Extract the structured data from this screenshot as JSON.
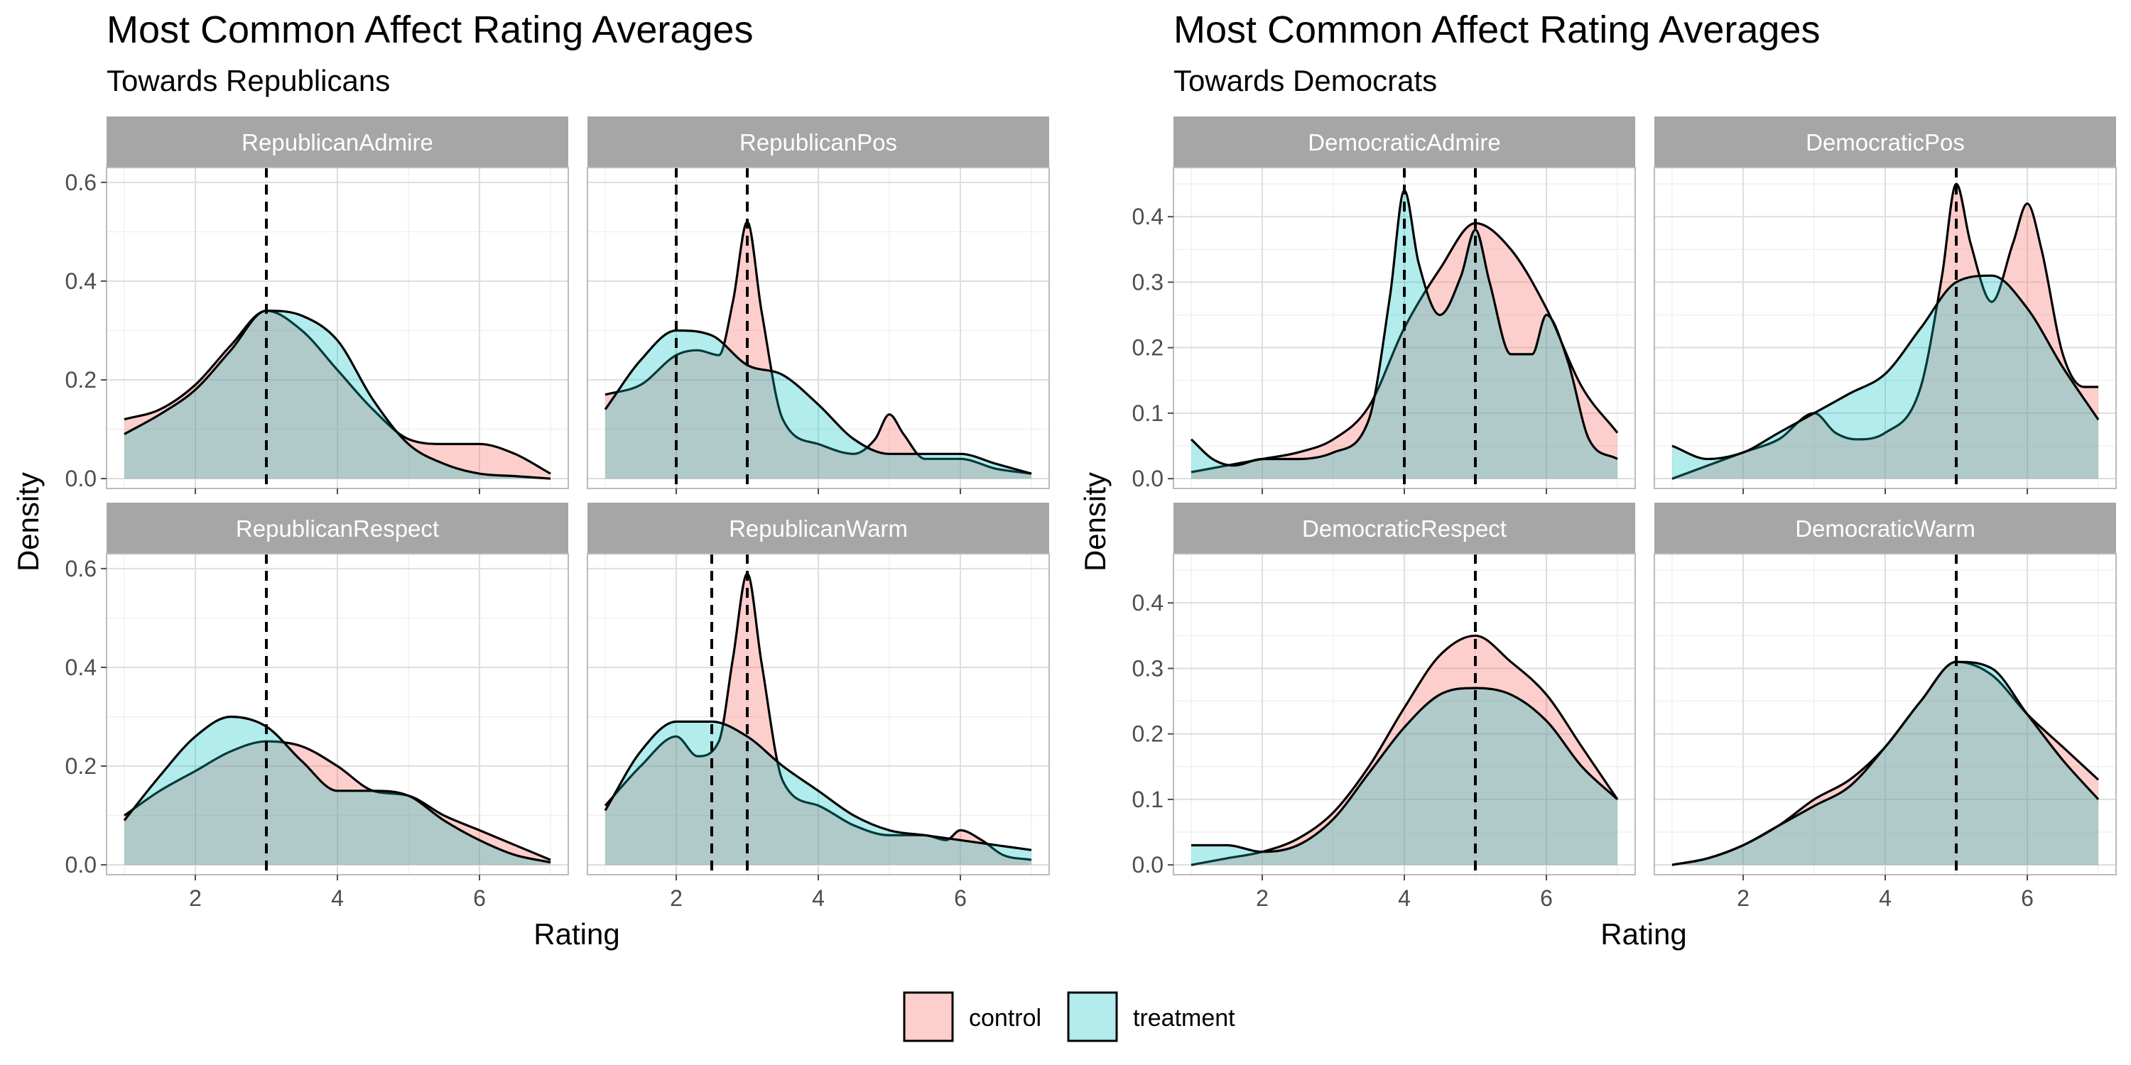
{
  "chart_data": {
    "type": "area",
    "x_label": "Rating",
    "y_label": "Density",
    "legend": {
      "position": "bottom",
      "entries": [
        {
          "name": "control",
          "color": "#F8766D"
        },
        {
          "name": "treatment",
          "color": "#00BFC4"
        }
      ]
    },
    "grid": true,
    "figures": [
      {
        "title": "Most Common Affect Rating Averages",
        "subtitle": "Towards Republicans",
        "xlim": [
          0.75,
          7.25
        ],
        "x_ticks": [
          2,
          4,
          6
        ],
        "ylim": [
          -0.02,
          0.63
        ],
        "y_ticks": [
          0.0,
          0.2,
          0.4,
          0.6
        ],
        "y_tick_labels": [
          "0.0",
          "0.2",
          "0.4",
          "0.6"
        ],
        "panels": [
          {
            "name": "RepublicanAdmire",
            "vlines": [
              3
            ],
            "series": [
              {
                "name": "control",
                "x": [
                  1,
                  1.5,
                  2,
                  2.5,
                  3,
                  3.5,
                  4,
                  4.5,
                  5,
                  5.5,
                  6,
                  6.5,
                  7
                ],
                "y": [
                  0.12,
                  0.14,
                  0.19,
                  0.27,
                  0.34,
                  0.3,
                  0.22,
                  0.14,
                  0.08,
                  0.07,
                  0.07,
                  0.05,
                  0.01
                ]
              },
              {
                "name": "treatment",
                "x": [
                  1,
                  1.5,
                  2,
                  2.5,
                  3,
                  3.5,
                  4,
                  4.5,
                  5,
                  5.5,
                  6,
                  6.5,
                  7
                ],
                "y": [
                  0.09,
                  0.13,
                  0.18,
                  0.26,
                  0.34,
                  0.33,
                  0.28,
                  0.16,
                  0.07,
                  0.03,
                  0.01,
                  0.005,
                  0.0
                ]
              }
            ]
          },
          {
            "name": "RepublicanPos",
            "vlines": [
              2,
              3
            ],
            "series": [
              {
                "name": "control",
                "x": [
                  1,
                  1.5,
                  2,
                  2.3,
                  2.6,
                  2.8,
                  3.0,
                  3.2,
                  3.5,
                  4,
                  4.5,
                  4.8,
                  5,
                  5.2,
                  5.5,
                  6,
                  6.5,
                  7
                ],
                "y": [
                  0.17,
                  0.19,
                  0.25,
                  0.26,
                  0.25,
                  0.36,
                  0.52,
                  0.34,
                  0.12,
                  0.07,
                  0.05,
                  0.08,
                  0.13,
                  0.09,
                  0.04,
                  0.04,
                  0.02,
                  0.01
                ]
              },
              {
                "name": "treatment",
                "x": [
                  1,
                  1.5,
                  2,
                  2.5,
                  3,
                  3.5,
                  4,
                  4.5,
                  5,
                  5.5,
                  6,
                  6.5,
                  7
                ],
                "y": [
                  0.14,
                  0.24,
                  0.3,
                  0.29,
                  0.23,
                  0.21,
                  0.15,
                  0.08,
                  0.05,
                  0.05,
                  0.05,
                  0.03,
                  0.01
                ]
              }
            ]
          },
          {
            "name": "RepublicanRespect",
            "vlines": [
              3
            ],
            "series": [
              {
                "name": "control",
                "x": [
                  1,
                  1.5,
                  2,
                  2.5,
                  3,
                  3.5,
                  4,
                  4.5,
                  5,
                  5.5,
                  6,
                  6.5,
                  7
                ],
                "y": [
                  0.1,
                  0.15,
                  0.19,
                  0.23,
                  0.25,
                  0.24,
                  0.2,
                  0.15,
                  0.14,
                  0.1,
                  0.07,
                  0.04,
                  0.01
                ]
              },
              {
                "name": "treatment",
                "x": [
                  1,
                  1.5,
                  2,
                  2.5,
                  3,
                  3.5,
                  4,
                  4.5,
                  5,
                  5.5,
                  6,
                  6.5,
                  7
                ],
                "y": [
                  0.09,
                  0.18,
                  0.26,
                  0.3,
                  0.28,
                  0.21,
                  0.15,
                  0.15,
                  0.14,
                  0.09,
                  0.05,
                  0.02,
                  0.005
                ]
              }
            ]
          },
          {
            "name": "RepublicanWarm",
            "vlines": [
              2.5,
              3
            ],
            "series": [
              {
                "name": "control",
                "x": [
                  1,
                  1.5,
                  2,
                  2.3,
                  2.6,
                  2.8,
                  3.0,
                  3.2,
                  3.5,
                  4,
                  4.5,
                  5,
                  5.5,
                  5.8,
                  6,
                  6.3,
                  6.6,
                  7
                ],
                "y": [
                  0.12,
                  0.2,
                  0.26,
                  0.22,
                  0.25,
                  0.42,
                  0.59,
                  0.41,
                  0.17,
                  0.12,
                  0.08,
                  0.06,
                  0.06,
                  0.05,
                  0.07,
                  0.05,
                  0.02,
                  0.01
                ]
              },
              {
                "name": "treatment",
                "x": [
                  1,
                  1.5,
                  2,
                  2.5,
                  3,
                  3.5,
                  4,
                  4.5,
                  5,
                  5.5,
                  6,
                  6.5,
                  7
                ],
                "y": [
                  0.11,
                  0.23,
                  0.29,
                  0.29,
                  0.26,
                  0.2,
                  0.15,
                  0.1,
                  0.07,
                  0.06,
                  0.05,
                  0.04,
                  0.03
                ]
              }
            ]
          }
        ]
      },
      {
        "title": "Most Common Affect Rating Averages",
        "subtitle": "Towards Democrats",
        "xlim": [
          0.75,
          7.25
        ],
        "x_ticks": [
          2,
          4,
          6
        ],
        "ylim": [
          -0.015,
          0.475
        ],
        "y_ticks": [
          0.0,
          0.1,
          0.2,
          0.3,
          0.4
        ],
        "y_tick_labels": [
          "0.0",
          "0.1",
          "0.2",
          "0.3",
          "0.4"
        ],
        "panels": [
          {
            "name": "DemocraticAdmire",
            "vlines": [
              4,
              5
            ],
            "series": [
              {
                "name": "control",
                "x": [
                  1,
                  1.5,
                  2,
                  2.5,
                  3,
                  3.5,
                  4,
                  4.5,
                  5,
                  5.5,
                  6,
                  6.5,
                  7
                ],
                "y": [
                  0.01,
                  0.02,
                  0.03,
                  0.04,
                  0.06,
                  0.11,
                  0.23,
                  0.32,
                  0.39,
                  0.35,
                  0.26,
                  0.14,
                  0.07
                ]
              },
              {
                "name": "treatment",
                "x": [
                  1,
                  1.3,
                  1.6,
                  2,
                  2.5,
                  3,
                  3.5,
                  3.8,
                  4,
                  4.2,
                  4.5,
                  4.8,
                  5,
                  5.2,
                  5.5,
                  5.8,
                  6,
                  6.3,
                  6.6,
                  7
                ],
                "y": [
                  0.06,
                  0.03,
                  0.02,
                  0.03,
                  0.03,
                  0.04,
                  0.09,
                  0.28,
                  0.44,
                  0.33,
                  0.25,
                  0.31,
                  0.38,
                  0.3,
                  0.19,
                  0.19,
                  0.25,
                  0.18,
                  0.06,
                  0.03
                ]
              }
            ]
          },
          {
            "name": "DemocraticPos",
            "vlines": [
              5
            ],
            "series": [
              {
                "name": "control",
                "x": [
                  1,
                  1.5,
                  2,
                  2.5,
                  3,
                  3.3,
                  3.6,
                  4,
                  4.5,
                  4.8,
                  5,
                  5.2,
                  5.5,
                  5.8,
                  6,
                  6.2,
                  6.5,
                  6.8,
                  7
                ],
                "y": [
                  0.0,
                  0.02,
                  0.04,
                  0.06,
                  0.1,
                  0.07,
                  0.06,
                  0.07,
                  0.14,
                  0.31,
                  0.45,
                  0.36,
                  0.27,
                  0.36,
                  0.42,
                  0.35,
                  0.19,
                  0.14,
                  0.14
                ]
              },
              {
                "name": "treatment",
                "x": [
                  1,
                  1.5,
                  2,
                  2.5,
                  3,
                  3.5,
                  4,
                  4.5,
                  5,
                  5.5,
                  6,
                  6.5,
                  7
                ],
                "y": [
                  0.05,
                  0.03,
                  0.04,
                  0.07,
                  0.1,
                  0.13,
                  0.16,
                  0.23,
                  0.3,
                  0.31,
                  0.26,
                  0.17,
                  0.09
                ]
              }
            ]
          },
          {
            "name": "DemocraticRespect",
            "vlines": [
              5
            ],
            "series": [
              {
                "name": "control",
                "x": [
                  1,
                  1.5,
                  2,
                  2.5,
                  3,
                  3.5,
                  4,
                  4.5,
                  5,
                  5.5,
                  6,
                  6.5,
                  7
                ],
                "y": [
                  0.0,
                  0.01,
                  0.02,
                  0.04,
                  0.08,
                  0.15,
                  0.24,
                  0.32,
                  0.35,
                  0.31,
                  0.26,
                  0.18,
                  0.1
                ]
              },
              {
                "name": "treatment",
                "x": [
                  1,
                  1.5,
                  2,
                  2.5,
                  3,
                  3.5,
                  4,
                  4.5,
                  5,
                  5.5,
                  6,
                  6.5,
                  7
                ],
                "y": [
                  0.03,
                  0.03,
                  0.02,
                  0.03,
                  0.07,
                  0.14,
                  0.21,
                  0.26,
                  0.27,
                  0.26,
                  0.22,
                  0.15,
                  0.1
                ]
              }
            ]
          },
          {
            "name": "DemocraticWarm",
            "vlines": [
              5
            ],
            "series": [
              {
                "name": "control",
                "x": [
                  1,
                  1.5,
                  2,
                  2.5,
                  3,
                  3.5,
                  4,
                  4.5,
                  5,
                  5.5,
                  6,
                  6.5,
                  7
                ],
                "y": [
                  0.0,
                  0.01,
                  0.03,
                  0.06,
                  0.1,
                  0.13,
                  0.18,
                  0.25,
                  0.31,
                  0.29,
                  0.23,
                  0.18,
                  0.13
                ]
              },
              {
                "name": "treatment",
                "x": [
                  1,
                  1.5,
                  2,
                  2.5,
                  3,
                  3.5,
                  4,
                  4.5,
                  5,
                  5.5,
                  6,
                  6.5,
                  7
                ],
                "y": [
                  0.0,
                  0.01,
                  0.03,
                  0.06,
                  0.09,
                  0.12,
                  0.18,
                  0.25,
                  0.31,
                  0.3,
                  0.23,
                  0.16,
                  0.1
                ]
              }
            ]
          }
        ]
      }
    ]
  }
}
